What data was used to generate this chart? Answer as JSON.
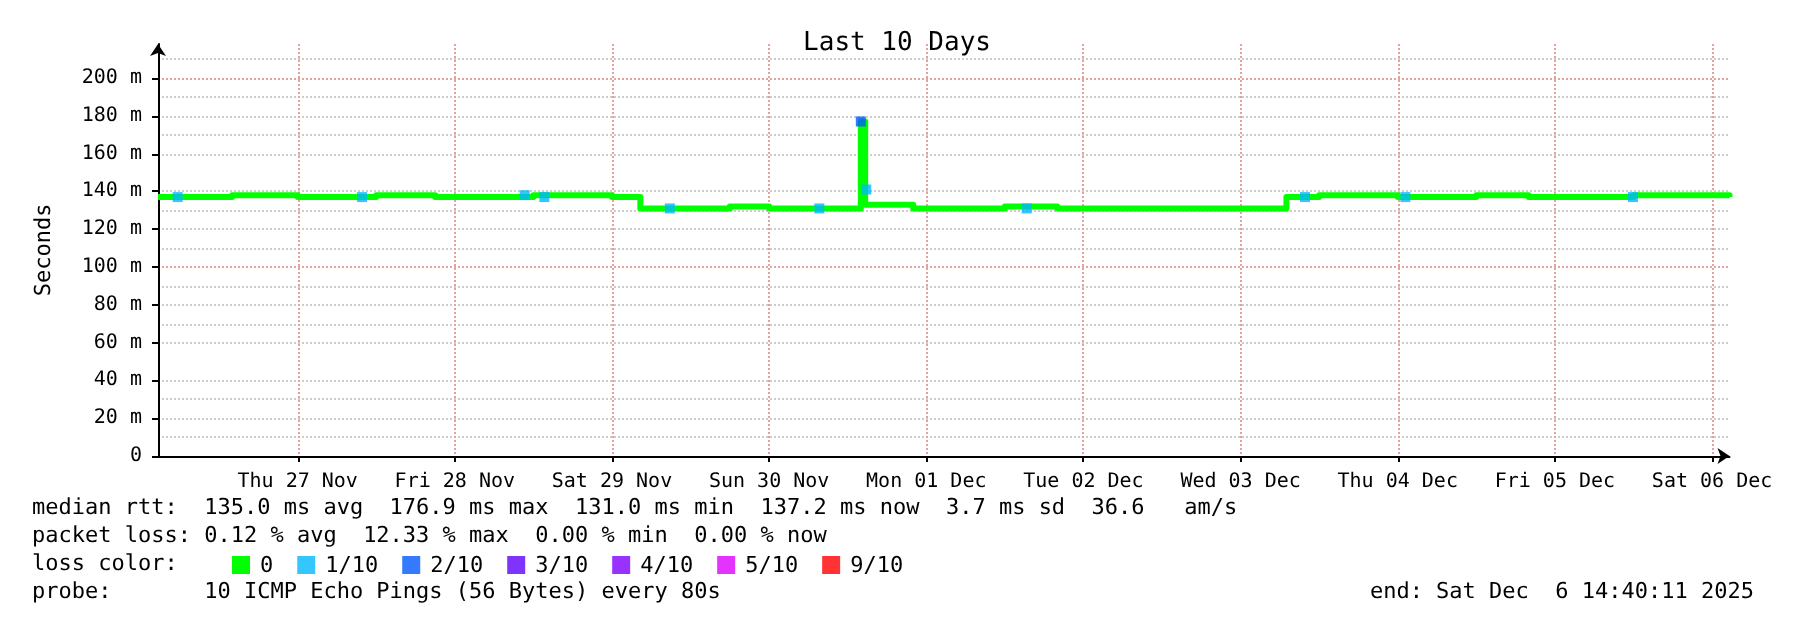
{
  "chart_data": {
    "type": "step",
    "title": "Last 10 Days",
    "ylabel": "Seconds",
    "legend_title": "loss color:",
    "xlim": [
      "2025-11-26T14:40",
      "2025-12-06T14:40"
    ],
    "xticks": [
      {
        "value": "2025-11-27T12:00",
        "label": "Thu 27 Nov"
      },
      {
        "value": "2025-11-28T12:00",
        "label": "Fri 28 Nov"
      },
      {
        "value": "2025-11-29T12:00",
        "label": "Sat 29 Nov"
      },
      {
        "value": "2025-11-30T12:00",
        "label": "Sun 30 Nov"
      },
      {
        "value": "2025-12-01T12:00",
        "label": "Mon 01 Dec"
      },
      {
        "value": "2025-12-02T12:00",
        "label": "Tue 02 Dec"
      },
      {
        "value": "2025-12-03T12:00",
        "label": "Wed 03 Dec"
      },
      {
        "value": "2025-12-04T12:00",
        "label": "Thu 04 Dec"
      },
      {
        "value": "2025-12-05T12:00",
        "label": "Fri 05 Dec"
      },
      {
        "value": "2025-12-06T12:00",
        "label": "Sat 06 Dec"
      }
    ],
    "ylim": [
      0,
      218
    ],
    "yticks": [
      0,
      {
        "value": 20,
        "label": "20 m"
      },
      {
        "value": 40,
        "label": "40 m"
      },
      {
        "value": 60,
        "label": "60 m"
      },
      {
        "value": 80,
        "label": "80 m"
      },
      {
        "value": 100,
        "label": "100 m"
      },
      {
        "value": 120,
        "label": "120 m"
      },
      {
        "value": 140,
        "label": "140 m"
      },
      {
        "value": 160,
        "label": "160 m"
      },
      {
        "value": 180,
        "label": "180 m"
      },
      {
        "value": 200,
        "label": "200 m"
      }
    ],
    "grid": true,
    "legend": "bottom left",
    "series": [
      {
        "name": "0",
        "color": "#00ff00",
        "x": [
          "2025-11-26T14:40",
          "2025-11-27T02:00",
          "2025-11-27T12:00",
          "2025-11-28T00:00",
          "2025-11-28T09:00",
          "2025-11-29T00:00",
          "2025-11-29T12:00",
          "2025-11-29T16:20",
          "2025-11-30T06:00",
          "2025-11-30T12:00",
          "2025-12-01T02:00",
          "2025-12-01T02:40",
          "2025-12-01T10:00",
          "2025-12-02T00:00",
          "2025-12-02T08:00",
          "2025-12-03T19:00",
          "2025-12-04T00:00",
          "2025-12-04T12:00",
          "2025-12-05T00:00",
          "2025-12-05T08:00",
          "2025-12-06T00:00",
          "2025-12-06T14:40"
        ],
        "values": [
          137,
          138,
          137,
          138,
          137,
          138,
          137,
          131,
          132,
          131,
          177,
          133,
          131,
          132,
          131,
          137,
          138,
          137,
          138,
          137,
          138,
          137
        ]
      },
      {
        "name": "1/10",
        "type": "scatter",
        "marker": "square",
        "color": "#00b8ff",
        "x": [
          "2025-11-26T17:40",
          "2025-11-27T21:50",
          "2025-11-28T22:40",
          "2025-11-29T01:40",
          "2025-11-29T20:50",
          "2025-11-30T19:40",
          "2025-12-01T02:50",
          "2025-12-02T03:20",
          "2025-12-03T21:50",
          "2025-12-04T13:10",
          "2025-12-05T23:55"
        ],
        "values": [
          137,
          137,
          138,
          137,
          131,
          131,
          141,
          131,
          137,
          137,
          137
        ]
      },
      {
        "name": "2/10",
        "type": "scatter",
        "marker": "square",
        "color": "#0059ff",
        "x": [
          "2025-12-01T02:00"
        ],
        "values": [
          177
        ]
      },
      {
        "name": "3/10",
        "type": "scatter",
        "marker": "square",
        "color": "#5e00ff"
      },
      {
        "name": "4/10",
        "type": "scatter",
        "marker": "square",
        "color": "#7e00ff"
      },
      {
        "name": "5/10",
        "type": "scatter",
        "marker": "square",
        "color": "#dd00ff"
      },
      {
        "name": "9/10",
        "type": "scatter",
        "marker": "square",
        "color": "#ff0000"
      }
    ],
    "annotations": [
      "median rtt:  135.0 ms avg  176.9 ms max  131.0 ms min  137.2 ms now  3.7 ms sd  36.6   am/s",
      "packet loss: 0.12 % avg  12.33 % max  0.00 % min  0.00 % now",
      "probe:       10 ICMP Echo Pings (56 Bytes) every 80s",
      "end: Sat Dec  6 14:40:11 2025"
    ]
  }
}
